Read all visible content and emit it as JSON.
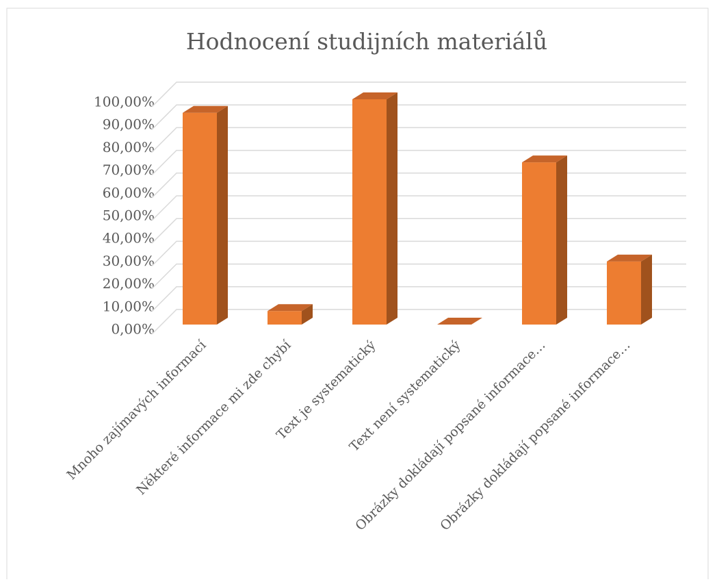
{
  "chart_data": {
    "type": "bar",
    "title": "Hodnocení studijních materiálů",
    "categories": [
      "Mnoho zajímavých informací",
      "Některé informace mi zde chybí",
      "Text je systematický",
      "Text není systematický",
      "Obrázky dokládají popsané informace…",
      "Obrázky dokládají popsané informace…"
    ],
    "values": [
      94,
      6,
      100,
      0,
      72,
      28
    ],
    "color": "#ed7d31",
    "ylim": [
      0,
      100
    ],
    "yticks": [
      {
        "value": 0,
        "label": "0,00%"
      },
      {
        "value": 10,
        "label": "10,00%"
      },
      {
        "value": 20,
        "label": "20,00%"
      },
      {
        "value": 30,
        "label": "30,00%"
      },
      {
        "value": 40,
        "label": "40,00%"
      },
      {
        "value": 50,
        "label": "50,00%"
      },
      {
        "value": 60,
        "label": "60,00%"
      },
      {
        "value": 70,
        "label": "70,00%"
      },
      {
        "value": 80,
        "label": "80,00%"
      },
      {
        "value": 90,
        "label": "90,00%"
      },
      {
        "value": 100,
        "label": "100,00%"
      }
    ],
    "grid": true
  }
}
